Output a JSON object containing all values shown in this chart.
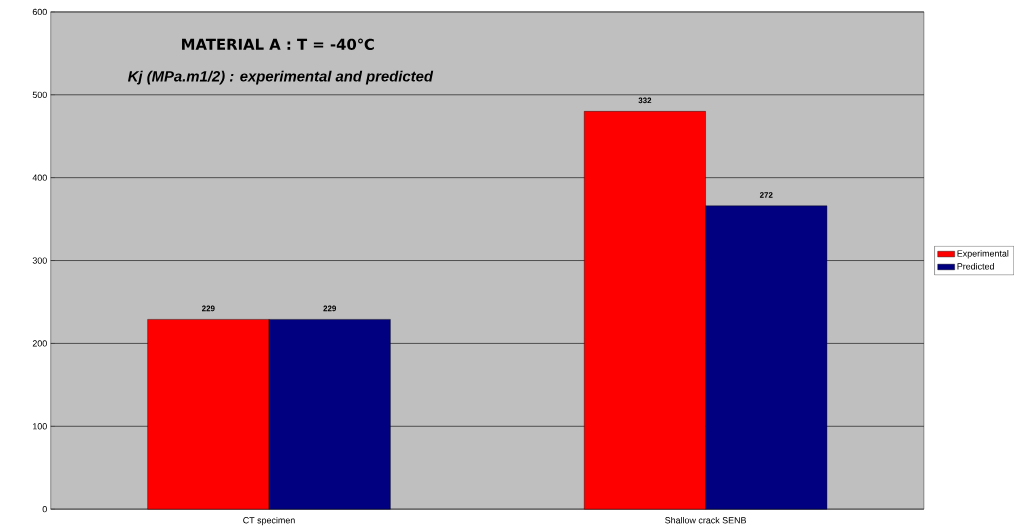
{
  "chart_data": {
    "type": "bar",
    "title": "MATERIAL A : T = -40℃",
    "subtitle": "Kj (MPa.m1/2) : experimental and predicted",
    "categories": [
      "CT specimen",
      "Shallow crack SENB"
    ],
    "series": [
      {
        "name": "Experimental",
        "color": "#ff0000",
        "values": [
          229,
          480
        ],
        "value_labels": [
          "229",
          null
        ]
      },
      {
        "name": "Predicted",
        "color": "#000080",
        "values": [
          229,
          366
        ],
        "value_labels": [
          "229",
          null
        ]
      }
    ],
    "annotations": [
      "332",
      "272"
    ],
    "ylim": [
      0,
      600
    ],
    "yticks": [
      0,
      100,
      200,
      300,
      400,
      500,
      600
    ],
    "grid": "y",
    "legend": "right"
  }
}
